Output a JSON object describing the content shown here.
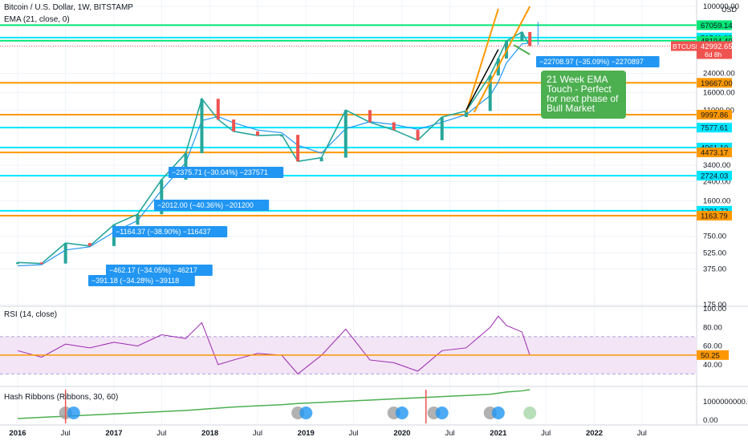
{
  "header": {
    "symbol_title": "Bitcoin / U.S. Dollar, 1W, BITSTAMP",
    "ema_label": "EMA (21, close, 0)",
    "rsi_label": "RSI (14, close)",
    "hash_label": "Hash Ribbons (Ribbons, 30, 60)",
    "currency": "USD"
  },
  "colors": {
    "candle_up": "#26a69a",
    "candle_down": "#ef5350",
    "ema": "#2196f3",
    "cyan_level": "#00e5ff",
    "orange_level": "#ff9800",
    "green_level": "#00e676",
    "rsi_line": "#9c27b0",
    "rsi_band": "#f3e5f5",
    "hash_line": "#4caf50",
    "price_tag": "#ef5350",
    "note_box": "#4caf50",
    "measure_box": "#2196f3"
  },
  "chart_data": {
    "type": "line",
    "price_scale": "log",
    "x": [
      "2016-01",
      "2016-04",
      "2016-07",
      "2016-10",
      "2017-01",
      "2017-04",
      "2017-07",
      "2017-10",
      "2017-12",
      "2018-02",
      "2018-04",
      "2018-07",
      "2018-10",
      "2018-12",
      "2019-03",
      "2019-06",
      "2019-09",
      "2019-12",
      "2020-03",
      "2020-06",
      "2020-09",
      "2020-12",
      "2021-01",
      "2021-02",
      "2021-04",
      "2021-05"
    ],
    "series": [
      {
        "values": [
          430,
          420,
          650,
          610,
          960,
          1200,
          2500,
          4400,
          14000,
          9000,
          7000,
          6400,
          6500,
          3700,
          4000,
          11000,
          8500,
          7200,
          5800,
          9500,
          10800,
          23000,
          33000,
          48000,
          58000,
          42992.65
        ]
      }
    ],
    "ema_values": [
      400,
      410,
      560,
      600,
      820,
      1050,
      2000,
      3600,
      8800,
      9600,
      8400,
      7200,
      6800,
      5200,
      4400,
      7400,
      8600,
      8100,
      7300,
      8500,
      10000,
      15000,
      20000,
      30000,
      45000,
      46000
    ],
    "x_ticks": [
      "2016",
      "Jul",
      "2017",
      "Jul",
      "2018",
      "Jul",
      "2019",
      "Jul",
      "2020",
      "Jul",
      "2021",
      "Jul",
      "2022",
      "Jul"
    ],
    "y_ticks": [
      "100000.00",
      "24000.00",
      "16000.00",
      "11000.00",
      "3400.00",
      "2400.00",
      "1600.00",
      "750.00",
      "525.00",
      "375.00",
      "175.00"
    ],
    "levels": [
      {
        "label": "67059.14",
        "value": 67059.14,
        "color": "#00e676"
      },
      {
        "label": "51541.00",
        "value": 51541.0,
        "color": "#00e5ff"
      },
      {
        "label": "48194.40",
        "value": 48194.4,
        "color": "#00e676"
      },
      {
        "label": "19667.00",
        "value": 19667.0,
        "color": "#ff9800"
      },
      {
        "label": "9997.86",
        "value": 9997.86,
        "color": "#ff9800"
      },
      {
        "label": "7577.61",
        "value": 7577.61,
        "color": "#00e5ff"
      },
      {
        "label": "4961.10",
        "value": 4961.1,
        "color": "#00e5ff"
      },
      {
        "label": "4473.17",
        "value": 4473.17,
        "color": "#ff9800"
      },
      {
        "label": "2724.03",
        "value": 2724.03,
        "color": "#00e5ff"
      },
      {
        "label": "1291.72",
        "value": 1291.72,
        "color": "#00e5ff"
      },
      {
        "label": "1163.79",
        "value": 1163.79,
        "color": "#ff9800"
      }
    ],
    "current_price": {
      "label": "42992.65",
      "symbol": "BTCUSD",
      "countdown": "6d 8h"
    },
    "measurements": [
      "−391.18 (−34.28%) −39118",
      "−462.17 (−34.05%) −46217",
      "−1164.37 (−38.90%) −116437",
      "−2012.00 (−40.36%) −201200",
      "−2375.71 (−30.04%) −237571",
      "−22708.97 (−35.09%) −2270897"
    ],
    "note": [
      "21 Week EMA",
      "Touch - Perfect",
      "for next phase of",
      "Bull Market"
    ],
    "rsi": {
      "y_ticks": [
        "100.00",
        "80.00",
        "60.00",
        "40.00"
      ],
      "current": "50.25",
      "values": [
        55,
        48,
        62,
        58,
        64,
        60,
        72,
        68,
        85,
        40,
        45,
        52,
        50,
        30,
        50,
        78,
        45,
        42,
        33,
        55,
        58,
        80,
        92,
        82,
        75,
        50
      ]
    },
    "hash": {
      "y_ticks": [
        "1000000000.00",
        "0.00"
      ]
    }
  }
}
